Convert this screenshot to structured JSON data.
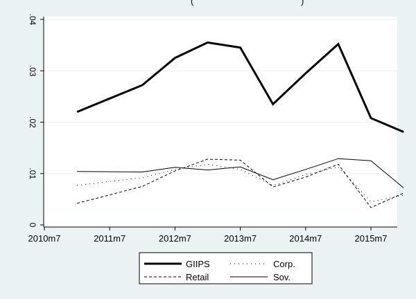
{
  "chart_data": {
    "type": "line",
    "title_fragment": "(",
    "title_fragment_end": ")",
    "xlabel": "",
    "ylabel": "",
    "x_ticks": [
      "2010m7",
      "2011m7",
      "2012m7",
      "2013m7",
      "2014m7",
      "2015m7"
    ],
    "y_ticks": [
      "0",
      ".01",
      ".02",
      ".03",
      ".04"
    ],
    "ylim": [
      0,
      0.04
    ],
    "grid": "horizontal",
    "legend_position": "bottom",
    "x": [
      "2011m1",
      "2012m1",
      "2012m7",
      "2013m1",
      "2013m7",
      "2014m1",
      "2014m7",
      "2015m1",
      "2015m7",
      "2016m1"
    ],
    "series": [
      {
        "name": "GIIPS",
        "style": "thick-solid",
        "values": [
          0.022,
          0.0272,
          0.0325,
          0.0355,
          0.0345,
          0.0235,
          0.0295,
          0.0352,
          0.0208,
          0.0181
        ]
      },
      {
        "name": "Corp.",
        "style": "dotted",
        "values": [
          0.0077,
          0.0092,
          0.0108,
          0.0118,
          0.0108,
          0.0077,
          0.0098,
          0.0113,
          0.0045,
          0.0058
        ]
      },
      {
        "name": "Retail",
        "style": "dashed",
        "values": [
          0.0042,
          0.0075,
          0.0105,
          0.0128,
          0.0126,
          0.0074,
          0.0093,
          0.0118,
          0.0034,
          0.0062
        ]
      },
      {
        "name": "Sov.",
        "style": "thin-solid",
        "values": [
          0.0104,
          0.0103,
          0.0112,
          0.0107,
          0.0113,
          0.0088,
          0.0108,
          0.0129,
          0.0125,
          0.0072
        ]
      }
    ]
  }
}
